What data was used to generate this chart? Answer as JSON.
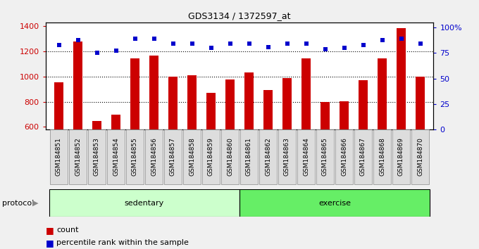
{
  "title": "GDS3134 / 1372597_at",
  "categories": [
    "GSM184851",
    "GSM184852",
    "GSM184853",
    "GSM184854",
    "GSM184855",
    "GSM184856",
    "GSM184857",
    "GSM184858",
    "GSM184859",
    "GSM184860",
    "GSM184861",
    "GSM184862",
    "GSM184863",
    "GSM184864",
    "GSM184865",
    "GSM184866",
    "GSM184867",
    "GSM184868",
    "GSM184869",
    "GSM184870"
  ],
  "bar_values": [
    955,
    1280,
    650,
    695,
    1145,
    1165,
    1000,
    1010,
    870,
    975,
    1035,
    895,
    990,
    1145,
    800,
    805,
    970,
    1145,
    1385,
    1000
  ],
  "dot_values": [
    83,
    88,
    75,
    77,
    89,
    89,
    84,
    84,
    80,
    84,
    84,
    81,
    84,
    84,
    79,
    80,
    83,
    88,
    89,
    84
  ],
  "bar_color": "#CC0000",
  "dot_color": "#0000CC",
  "ylim_left": [
    580,
    1430
  ],
  "ylim_right": [
    0,
    105
  ],
  "yticks_left": [
    600,
    800,
    1000,
    1200,
    1400
  ],
  "yticks_right": [
    0,
    25,
    50,
    75,
    100
  ],
  "ytick_labels_right": [
    "0",
    "25",
    "50",
    "75",
    "100%"
  ],
  "grid_values": [
    800,
    1000,
    1200
  ],
  "bar_bottom": 580,
  "sedentary_count": 10,
  "sedentary_color": "#CCFFCC",
  "exercise_color": "#66EE66",
  "protocol_label": "protocol",
  "sedentary_label": "sedentary",
  "exercise_label": "exercise",
  "legend_count": "count",
  "legend_percentile": "percentile rank within the sample",
  "fig_bg_color": "#F0F0F0",
  "plot_bg_color": "#FFFFFF",
  "tick_bg_color": "#DDDDDD"
}
